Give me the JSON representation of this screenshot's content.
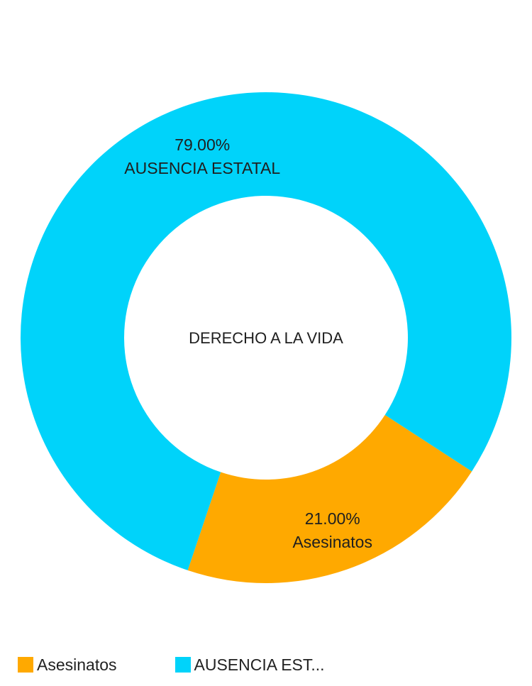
{
  "chart_data": {
    "type": "pie",
    "variant": "donut",
    "center_label": "DERECHO A LA VIDA",
    "slices": [
      {
        "label": "Asesinatos",
        "value": 21.0,
        "percent_label": "21.00%",
        "color": "#FFA900"
      },
      {
        "label": "AUSENCIA ESTATAL",
        "value": 79.0,
        "percent_label": "79.00%",
        "color": "#00D3FA"
      }
    ],
    "legend": {
      "placement": "bottom-left",
      "items": [
        {
          "label": "Asesinatos",
          "color": "#FFA900"
        },
        {
          "label": "AUSENCIA EST...",
          "color": "#00D3FA"
        }
      ]
    }
  }
}
